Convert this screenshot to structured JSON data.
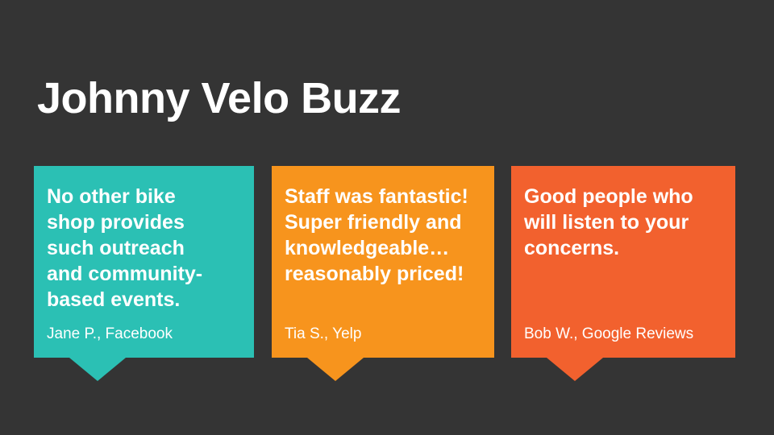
{
  "slide": {
    "title": "Johnny Velo Buzz",
    "colors": {
      "background": "#343434",
      "text": "#FFFFFF",
      "teal": "#2BC0B4",
      "orange": "#F7941D",
      "orange_red": "#F2612E"
    }
  },
  "testimonials": [
    {
      "quote": "No other bike shop provides such outreach and community-based events.",
      "attribution": "Jane P., Facebook",
      "color": "#2BC0B4"
    },
    {
      "quote": "Staff was fantastic! Super friendly and knowledgeable… reasonably priced!",
      "attribution": "Tia S., Yelp",
      "color": "#F7941D"
    },
    {
      "quote": "Good people who will listen to your concerns.",
      "attribution": "Bob W., Google Reviews",
      "color": "#F2612E"
    }
  ]
}
